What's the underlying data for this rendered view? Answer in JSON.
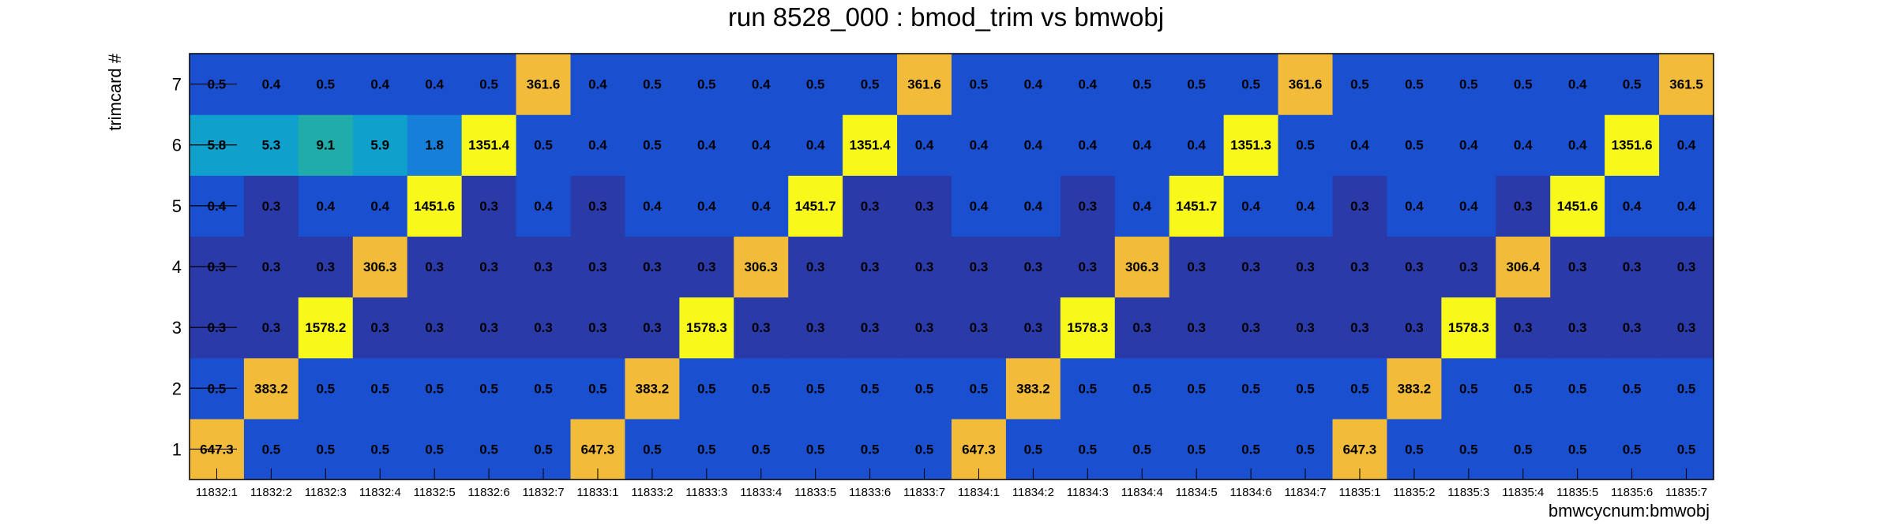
{
  "chart_data": {
    "type": "heatmap",
    "title": "run 8528_000 : bmod_trim vs bmwobj",
    "xlabel": "bmwcycnum:bmwobj",
    "ylabel": "trimcard #",
    "categories": [
      "11832:1",
      "11832:2",
      "11832:3",
      "11832:4",
      "11832:5",
      "11832:6",
      "11832:7",
      "11833:1",
      "11833:2",
      "11833:3",
      "11833:4",
      "11833:5",
      "11833:6",
      "11833:7",
      "11834:1",
      "11834:2",
      "11834:3",
      "11834:4",
      "11834:5",
      "11834:6",
      "11834:7",
      "11835:1",
      "11835:2",
      "11835:3",
      "11835:4",
      "11835:5",
      "11835:6",
      "11835:7"
    ],
    "rows": [
      "1",
      "2",
      "3",
      "4",
      "5",
      "6",
      "7"
    ],
    "values": [
      [
        "647.3",
        "0.5",
        "0.5",
        "0.5",
        "0.5",
        "0.5",
        "0.5",
        "647.3",
        "0.5",
        "0.5",
        "0.5",
        "0.5",
        "0.5",
        "0.5",
        "647.3",
        "0.5",
        "0.5",
        "0.5",
        "0.5",
        "0.5",
        "0.5",
        "647.3",
        "0.5",
        "0.5",
        "0.5",
        "0.5",
        "0.5",
        "0.5"
      ],
      [
        "0.5",
        "383.2",
        "0.5",
        "0.5",
        "0.5",
        "0.5",
        "0.5",
        "0.5",
        "383.2",
        "0.5",
        "0.5",
        "0.5",
        "0.5",
        "0.5",
        "0.5",
        "383.2",
        "0.5",
        "0.5",
        "0.5",
        "0.5",
        "0.5",
        "0.5",
        "383.2",
        "0.5",
        "0.5",
        "0.5",
        "0.5",
        "0.5"
      ],
      [
        "0.3",
        "0.3",
        "1578.2",
        "0.3",
        "0.3",
        "0.3",
        "0.3",
        "0.3",
        "0.3",
        "1578.3",
        "0.3",
        "0.3",
        "0.3",
        "0.3",
        "0.3",
        "0.3",
        "1578.3",
        "0.3",
        "0.3",
        "0.3",
        "0.3",
        "0.3",
        "0.3",
        "1578.3",
        "0.3",
        "0.3",
        "0.3",
        "0.3"
      ],
      [
        "0.3",
        "0.3",
        "0.3",
        "306.3",
        "0.3",
        "0.3",
        "0.3",
        "0.3",
        "0.3",
        "0.3",
        "306.3",
        "0.3",
        "0.3",
        "0.3",
        "0.3",
        "0.3",
        "0.3",
        "306.3",
        "0.3",
        "0.3",
        "0.3",
        "0.3",
        "0.3",
        "0.3",
        "306.4",
        "0.3",
        "0.3",
        "0.3"
      ],
      [
        "0.4",
        "0.3",
        "0.4",
        "0.4",
        "1451.6",
        "0.3",
        "0.4",
        "0.3",
        "0.4",
        "0.4",
        "0.4",
        "1451.7",
        "0.3",
        "0.3",
        "0.4",
        "0.4",
        "0.3",
        "0.4",
        "1451.7",
        "0.4",
        "0.4",
        "0.3",
        "0.4",
        "0.4",
        "0.3",
        "1451.6",
        "0.4",
        "0.4"
      ],
      [
        "5.8",
        "5.3",
        "9.1",
        "5.9",
        "1.8",
        "1351.4",
        "0.5",
        "0.4",
        "0.5",
        "0.4",
        "0.4",
        "0.4",
        "1351.4",
        "0.4",
        "0.4",
        "0.4",
        "0.4",
        "0.4",
        "0.4",
        "1351.3",
        "0.5",
        "0.4",
        "0.5",
        "0.4",
        "0.4",
        "0.4",
        "1351.6",
        "0.4"
      ],
      [
        "0.5",
        "0.4",
        "0.5",
        "0.4",
        "0.4",
        "0.5",
        "361.6",
        "0.4",
        "0.5",
        "0.5",
        "0.4",
        "0.5",
        "0.5",
        "361.6",
        "0.5",
        "0.4",
        "0.4",
        "0.5",
        "0.5",
        "0.5",
        "361.6",
        "0.5",
        "0.5",
        "0.5",
        "0.5",
        "0.4",
        "0.5",
        "361.5"
      ]
    ],
    "colors": {
      "low": "#2a3aa8",
      "mid_low": "#1a50cf",
      "c_1_8": "#1680d8",
      "c_5": "#0fa0cc",
      "c_9": "#20aca8",
      "c_300": "#f2bc3a",
      "c_high": "#f8f81a"
    },
    "grid": false,
    "legend": "none"
  }
}
